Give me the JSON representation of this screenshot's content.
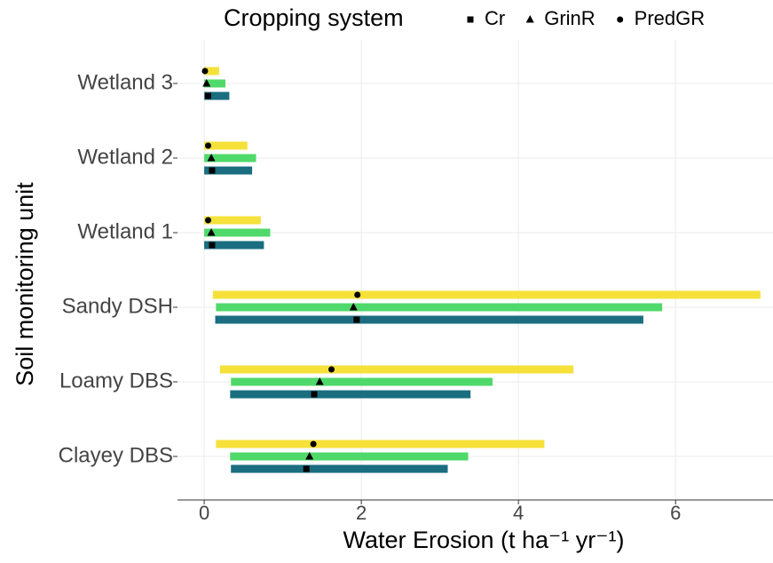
{
  "chart_data": {
    "type": "range_dot",
    "xlabel": "Water Erosion (t ha⁻¹ yr⁻¹)",
    "ylabel": "Soil monitoring unit",
    "legend_title": "Cropping system",
    "legend_position": "top",
    "grid": true,
    "categories": [
      "Wetland 3",
      "Wetland 2",
      "Wetland 1",
      "Sandy DSH",
      "Loamy DBS",
      "Clayey DBS"
    ],
    "series": [
      {
        "name": "Cr",
        "color": "#1a6e80",
        "marker": "square",
        "min": [
          0,
          0,
          0,
          0.14,
          0.33,
          0.34
        ],
        "max": [
          0.32,
          0.61,
          0.76,
          5.59,
          3.39,
          3.1
        ],
        "point": [
          0.05,
          0.1,
          0.1,
          1.94,
          1.4,
          1.3
        ]
      },
      {
        "name": "GrinR",
        "color": "#4fd96a",
        "marker": "triangle",
        "min": [
          0,
          0,
          0,
          0.15,
          0.34,
          0.33
        ],
        "max": [
          0.27,
          0.66,
          0.84,
          5.83,
          3.67,
          3.36
        ],
        "point": [
          0.03,
          0.09,
          0.09,
          1.9,
          1.47,
          1.34
        ]
      },
      {
        "name": "PredGR",
        "color": "#f5e13a",
        "marker": "circle",
        "min": [
          0,
          0,
          0,
          0.11,
          0.2,
          0.15
        ],
        "max": [
          0.19,
          0.55,
          0.72,
          7.08,
          4.7,
          4.33
        ],
        "point": [
          0.01,
          0.05,
          0.05,
          1.95,
          1.62,
          1.39
        ]
      }
    ],
    "xlim": [
      -0.34,
      7.24
    ],
    "xticks": [
      0,
      2,
      4,
      6
    ]
  }
}
